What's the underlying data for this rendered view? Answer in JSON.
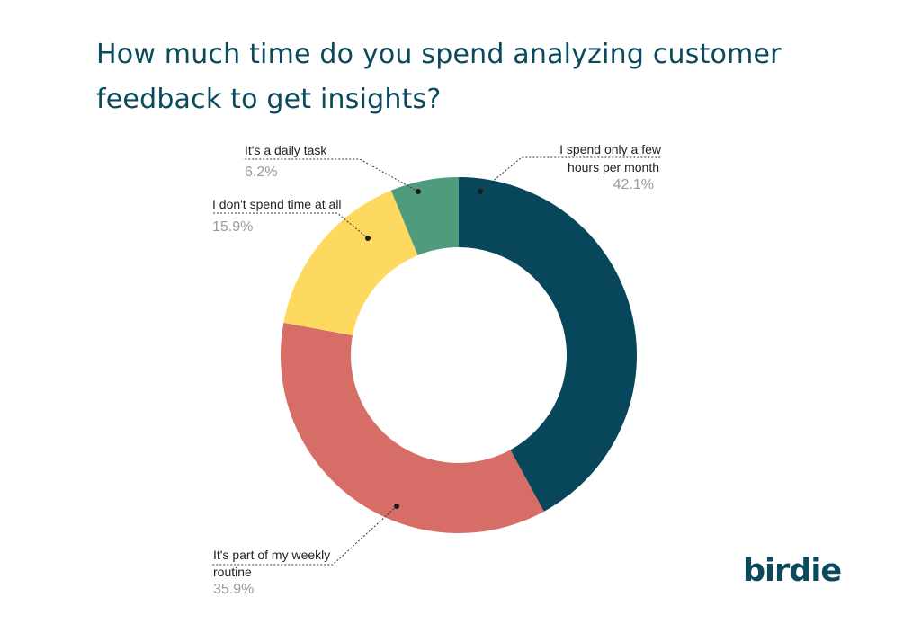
{
  "title": "How much time do you spend analyzing customer feedback to get insights?",
  "logo": "birdie",
  "chart_data": {
    "type": "pie",
    "variant": "donut",
    "title": "How much time do you spend analyzing customer feedback to get insights?",
    "slices": [
      {
        "name": "I spend only a few hours per month",
        "label_lines": [
          "I spend only a few",
          "hours per month"
        ],
        "value": 42.1,
        "display": "42.1%",
        "color": "#08475b"
      },
      {
        "name": "It's part of my weekly routine",
        "label_lines": [
          "It's part of my weekly",
          "routine"
        ],
        "value": 35.9,
        "display": "35.9%",
        "color": "#d66d66"
      },
      {
        "name": "I don't spend time at all",
        "label_lines": [
          "I don't spend time at all"
        ],
        "value": 15.9,
        "display": "15.9%",
        "color": "#fdda5f"
      },
      {
        "name": "It's a daily task",
        "label_lines": [
          "It's a daily task"
        ],
        "value": 6.2,
        "display": "6.2%",
        "color": "#4e9c7d"
      }
    ],
    "legend": "none"
  }
}
